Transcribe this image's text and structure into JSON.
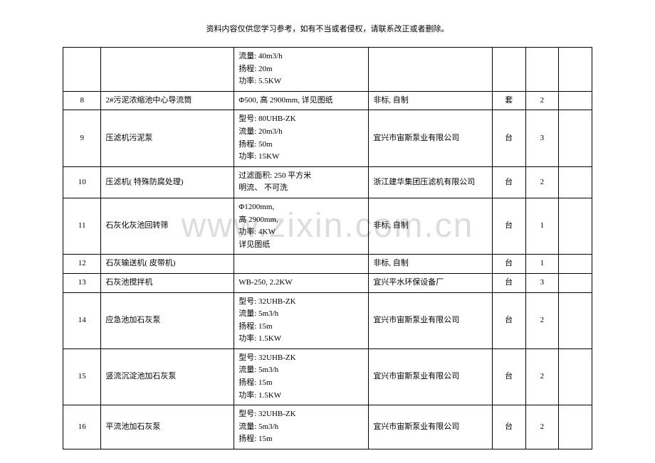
{
  "header": "资料内容仅供您学习参考，如有不当或者侵权，请联系改正或者删除。",
  "watermark": "www.zixin.com.cn",
  "rows": [
    {
      "idx": "",
      "name": "",
      "spec": "流量: 40m3/h\n扬程: 20m\n功率: 5.5KW",
      "mfr": "",
      "unit": "",
      "qty": "",
      "note": ""
    },
    {
      "idx": "8",
      "name": "2#污泥浓缩池中心导流筒",
      "spec": "Φ500, 高 2900mm, 详见图纸",
      "mfr": "非标, 自制",
      "unit": "套",
      "qty": "2",
      "note": ""
    },
    {
      "idx": "9",
      "name": "压滤机污泥泵",
      "spec": "型号: 80UHB-ZK\n流量: 20m3/h\n扬程: 50m\n功率: 15KW",
      "mfr": "宜兴市宙斯泵业有限公司",
      "unit": "台",
      "qty": "3",
      "note": ""
    },
    {
      "idx": "10",
      "name": "压滤机( 特殊防腐处理)",
      "spec": "过滤面积: 250 平方米\n明流、 不可洗",
      "mfr": "浙江建华集团压滤机有限公司",
      "unit": "台",
      "qty": "2",
      "note": ""
    },
    {
      "idx": "11",
      "name": "石灰化灰池回转筛",
      "spec": "Φ1200mm,\n高 2900mm,\n功率: 4KW\n详见图纸",
      "mfr": "非标, 自制",
      "unit": "台",
      "qty": "1",
      "note": ""
    },
    {
      "idx": "12",
      "name": "石灰输送机( 皮带机)",
      "spec": "",
      "mfr": "非标, 自制",
      "unit": "台",
      "qty": "1",
      "note": ""
    },
    {
      "idx": "13",
      "name": "石灰池搅拌机",
      "spec": "WB-250, 2.2KW",
      "mfr": "宜兴平水环保设备厂",
      "unit": "台",
      "qty": "3",
      "note": ""
    },
    {
      "idx": "14",
      "name": "应急池加石灰泵",
      "spec": "型号: 32UHB-ZK\n流量: 5m3/h\n扬程: 15m\n功率: 1.5KW",
      "mfr": "宜兴市宙斯泵业有限公司",
      "unit": "台",
      "qty": "2",
      "note": ""
    },
    {
      "idx": "15",
      "name": "竖流沉淀池加石灰泵",
      "spec": "型号: 32UHB-ZK\n流量: 5m3/h\n扬程: 15m\n功率: 1.5KW",
      "mfr": "宜兴市宙斯泵业有限公司",
      "unit": "台",
      "qty": "2",
      "note": ""
    },
    {
      "idx": "16",
      "name": "平流池加石灰泵",
      "spec": "型号: 32UHB-ZK\n流量: 5m3/h\n扬程: 15m",
      "mfr": "宜兴市宙斯泵业有限公司",
      "unit": "台",
      "qty": "2",
      "note": ""
    }
  ]
}
